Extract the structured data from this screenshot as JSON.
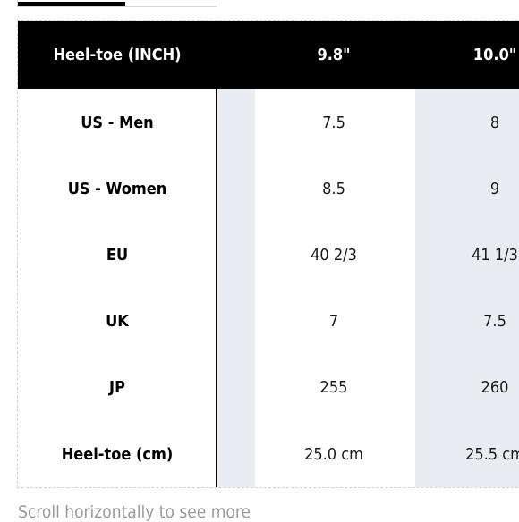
{
  "tabs": {
    "active_color": "#000000",
    "border_color": "#d6d6d6"
  },
  "table": {
    "header_label": "Heel-toe (INCH)",
    "columns": [
      "9.8\"",
      "10.0\""
    ],
    "rows": [
      {
        "label": "US - Men",
        "values": [
          "7.5",
          "8"
        ]
      },
      {
        "label": "US - Women",
        "values": [
          "8.5",
          "9"
        ]
      },
      {
        "label": "EU",
        "values": [
          "40 2/3",
          "41 1/3"
        ]
      },
      {
        "label": "UK",
        "values": [
          "7",
          "7.5"
        ]
      },
      {
        "label": "JP",
        "values": [
          "255",
          "260"
        ]
      },
      {
        "label": "Heel-toe (cm)",
        "values": [
          "25.0 cm",
          "25.5 cm"
        ]
      }
    ],
    "colors": {
      "header_bg": "#000000",
      "header_text": "#ffffff",
      "stripe": "#e9edf1"
    }
  },
  "hint_text": "Scroll horizontally to see more"
}
